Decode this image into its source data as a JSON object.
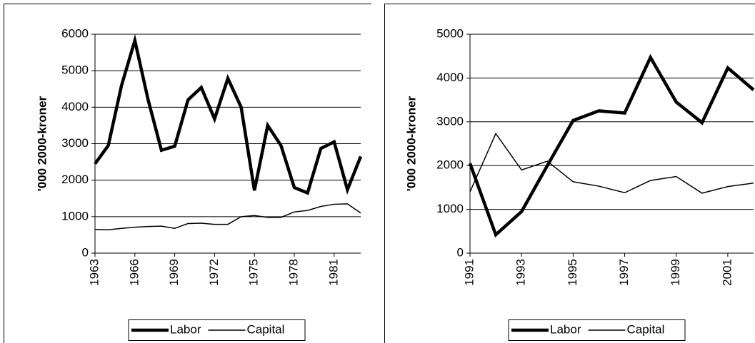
{
  "chart_data": [
    {
      "type": "line",
      "y_label": "'000 2000-kroner",
      "x": [
        1963,
        1964,
        1965,
        1966,
        1967,
        1968,
        1969,
        1970,
        1971,
        1972,
        1973,
        1974,
        1975,
        1976,
        1977,
        1978,
        1979,
        1980,
        1981,
        1982,
        1983
      ],
      "xlim": [
        1963,
        1983
      ],
      "xticks": [
        1963,
        1966,
        1969,
        1972,
        1975,
        1978,
        1981
      ],
      "ylim": [
        0,
        6000
      ],
      "yticks": [
        0,
        1000,
        2000,
        3000,
        4000,
        5000,
        6000
      ],
      "grid": true,
      "legend": "bottom",
      "series": [
        {
          "name": "Labor",
          "color": "#000000",
          "width": 4.5,
          "values": [
            2450,
            2950,
            4600,
            5830,
            4200,
            2820,
            2930,
            4200,
            4540,
            3680,
            4790,
            4000,
            1720,
            3500,
            2950,
            1800,
            1650,
            2870,
            3050,
            1740,
            2650
          ]
        },
        {
          "name": "Capital",
          "color": "#000000",
          "width": 1.5,
          "values": [
            650,
            640,
            680,
            710,
            730,
            740,
            680,
            810,
            820,
            790,
            790,
            1000,
            1030,
            980,
            980,
            1130,
            1170,
            1280,
            1340,
            1350,
            1100
          ]
        }
      ]
    },
    {
      "type": "line",
      "y_label": "'000 2000-kroner",
      "x": [
        1991,
        1992,
        1993,
        1994,
        1995,
        1996,
        1997,
        1998,
        1999,
        2000,
        2001,
        2002
      ],
      "xlim": [
        1991,
        2002
      ],
      "xticks": [
        1991,
        1993,
        1995,
        1997,
        1999,
        2001
      ],
      "ylim": [
        0,
        5000
      ],
      "yticks": [
        0,
        1000,
        2000,
        3000,
        4000,
        5000
      ],
      "grid": true,
      "legend": "bottom",
      "series": [
        {
          "name": "Labor",
          "color": "#000000",
          "width": 4.5,
          "values": [
            2050,
            420,
            950,
            2000,
            3030,
            3250,
            3200,
            4470,
            3450,
            2980,
            4230,
            3730
          ]
        },
        {
          "name": "Capital",
          "color": "#000000",
          "width": 1.5,
          "values": [
            1400,
            2730,
            1900,
            2100,
            1630,
            1530,
            1380,
            1660,
            1750,
            1370,
            1520,
            1600
          ]
        }
      ]
    }
  ]
}
